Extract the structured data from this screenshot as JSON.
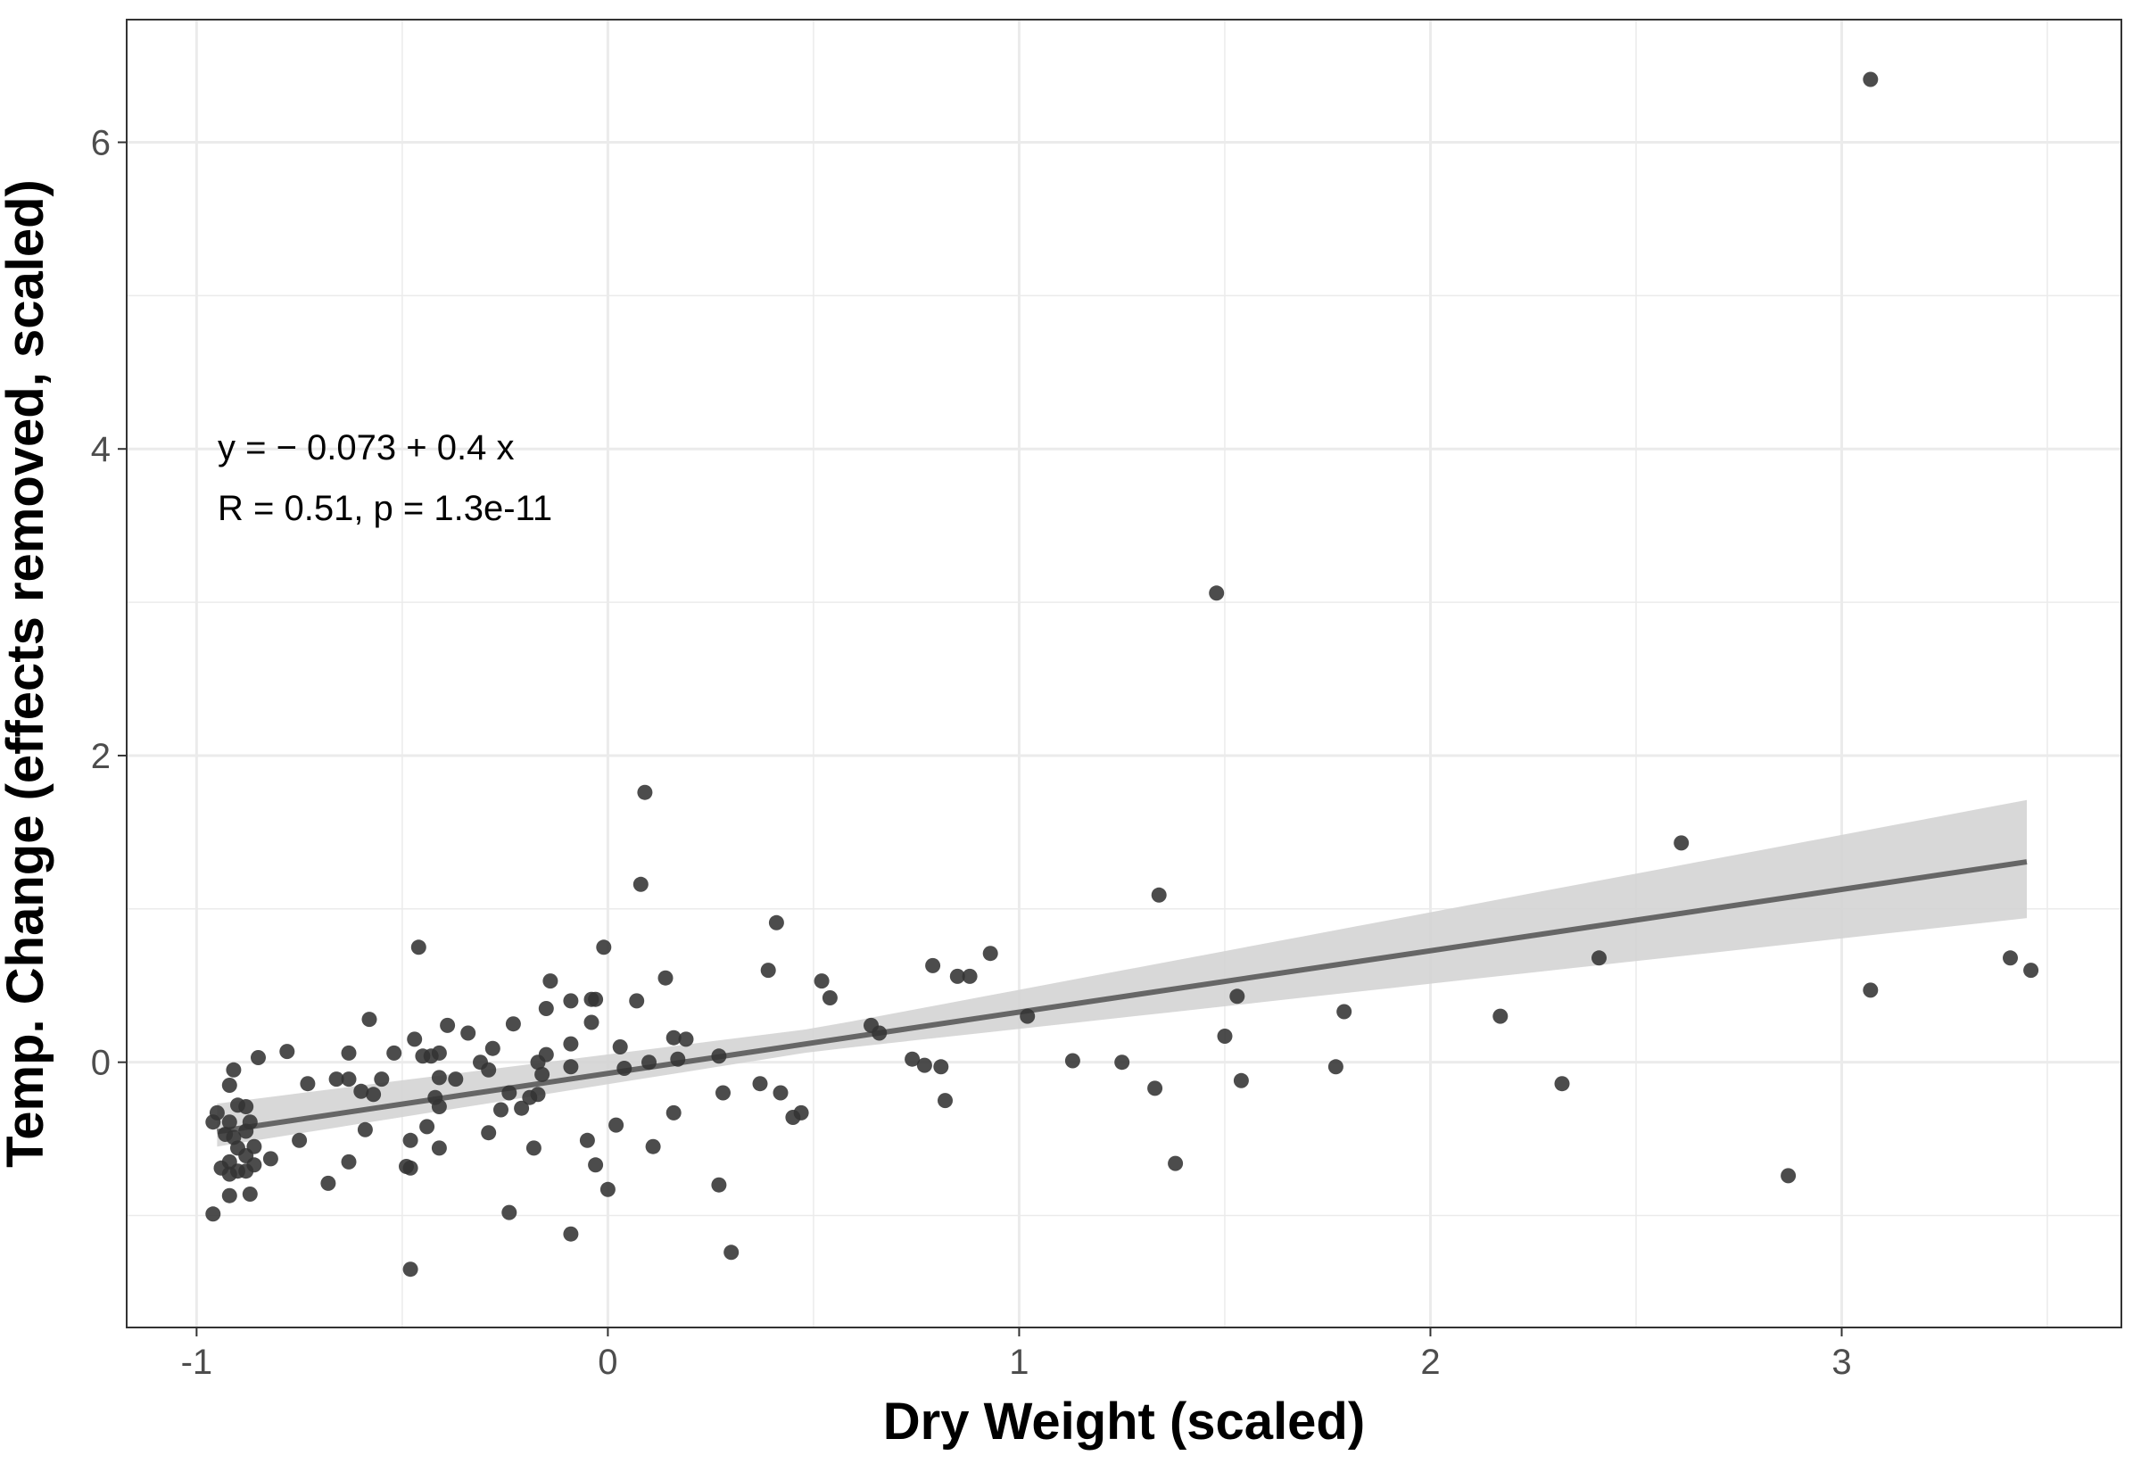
{
  "chart_data": {
    "type": "scatter",
    "title": "",
    "xlabel": "Dry Weight (scaled)",
    "ylabel": "Temp. Change (effects removed, scaled)",
    "xlim": [
      -1.17,
      3.68
    ],
    "ylim": [
      -1.73,
      6.8
    ],
    "x_ticks": [
      -1,
      0,
      1,
      2,
      3
    ],
    "x_tick_labels": [
      "-1",
      "0",
      "1",
      "2",
      "3"
    ],
    "y_ticks": [
      0,
      2,
      4,
      6
    ],
    "y_tick_labels": [
      "0",
      "2",
      "4",
      "6"
    ],
    "grid": true,
    "legend": "none",
    "colors": {
      "points": "#333333",
      "fit_line": "#666666",
      "confidence_band": "#d4d4d4",
      "grid": "#ebebeb",
      "panel_border": "#333333"
    },
    "regression": {
      "intercept": -0.073,
      "slope": 0.4,
      "x_range": [
        -0.95,
        3.45
      ],
      "ci_lower_at_x": [
        [
          -0.95,
          -0.55
        ],
        [
          0.5,
          0.07
        ],
        [
          3.45,
          0.94
        ]
      ],
      "ci_upper_at_x": [
        [
          -0.95,
          -0.27
        ],
        [
          0.5,
          0.22
        ],
        [
          3.45,
          1.71
        ]
      ]
    },
    "annotations": {
      "equation": "y = − 0.073 + 0.4 x",
      "stats": "R = 0.51, p = 1.3e-11"
    },
    "points": [
      [
        3.07,
        6.41
      ],
      [
        1.48,
        3.06
      ],
      [
        0.09,
        1.76
      ],
      [
        2.61,
        1.43
      ],
      [
        0.08,
        1.16
      ],
      [
        1.34,
        1.09
      ],
      [
        0.41,
        0.91
      ],
      [
        -0.46,
        0.75
      ],
      [
        -0.01,
        0.75
      ],
      [
        0.93,
        0.71
      ],
      [
        3.41,
        0.68
      ],
      [
        2.41,
        0.68
      ],
      [
        0.79,
        0.63
      ],
      [
        0.39,
        0.6
      ],
      [
        3.46,
        0.6
      ],
      [
        0.85,
        0.56
      ],
      [
        0.88,
        0.56
      ],
      [
        0.14,
        0.55
      ],
      [
        -0.14,
        0.53
      ],
      [
        0.52,
        0.53
      ],
      [
        3.07,
        0.47
      ],
      [
        1.53,
        0.43
      ],
      [
        0.54,
        0.42
      ],
      [
        -0.04,
        0.41
      ],
      [
        -0.03,
        0.41
      ],
      [
        0.07,
        0.4
      ],
      [
        -0.09,
        0.4
      ],
      [
        -0.15,
        0.35
      ],
      [
        1.79,
        0.33
      ],
      [
        1.02,
        0.3
      ],
      [
        2.17,
        0.3
      ],
      [
        -0.58,
        0.28
      ],
      [
        -0.04,
        0.26
      ],
      [
        -0.23,
        0.25
      ],
      [
        -0.39,
        0.24
      ],
      [
        0.64,
        0.24
      ],
      [
        0.66,
        0.19
      ],
      [
        -0.34,
        0.19
      ],
      [
        1.5,
        0.17
      ],
      [
        0.16,
        0.16
      ],
      [
        0.19,
        0.15
      ],
      [
        -0.47,
        0.15
      ],
      [
        -0.09,
        0.12
      ],
      [
        -0.28,
        0.09
      ],
      [
        0.03,
        0.1
      ],
      [
        -0.78,
        0.07
      ],
      [
        -0.52,
        0.06
      ],
      [
        -0.63,
        0.06
      ],
      [
        -0.41,
        0.06
      ],
      [
        -0.15,
        0.05
      ],
      [
        -0.45,
        0.04
      ],
      [
        -0.43,
        0.04
      ],
      [
        -0.85,
        0.03
      ],
      [
        0.27,
        0.04
      ],
      [
        0.17,
        0.02
      ],
      [
        0.74,
        0.02
      ],
      [
        1.13,
        0.01
      ],
      [
        -0.17,
        0.0
      ],
      [
        1.25,
        0.0
      ],
      [
        0.1,
        0.0
      ],
      [
        -0.31,
        0.0
      ],
      [
        0.77,
        -0.02
      ],
      [
        -0.09,
        -0.03
      ],
      [
        0.81,
        -0.03
      ],
      [
        0.04,
        -0.04
      ],
      [
        1.77,
        -0.03
      ],
      [
        -0.91,
        -0.05
      ],
      [
        -0.29,
        -0.05
      ],
      [
        -0.16,
        -0.08
      ],
      [
        -0.66,
        -0.11
      ],
      [
        -0.41,
        -0.1
      ],
      [
        -0.37,
        -0.11
      ],
      [
        -0.55,
        -0.11
      ],
      [
        -0.63,
        -0.11
      ],
      [
        -0.73,
        -0.14
      ],
      [
        1.54,
        -0.12
      ],
      [
        -0.92,
        -0.15
      ],
      [
        2.32,
        -0.14
      ],
      [
        0.37,
        -0.14
      ],
      [
        -0.6,
        -0.19
      ],
      [
        1.33,
        -0.17
      ],
      [
        -0.57,
        -0.21
      ],
      [
        -0.24,
        -0.2
      ],
      [
        0.28,
        -0.2
      ],
      [
        -0.17,
        -0.21
      ],
      [
        -0.42,
        -0.23
      ],
      [
        0.42,
        -0.2
      ],
      [
        0.82,
        -0.25
      ],
      [
        -0.41,
        -0.29
      ],
      [
        -0.19,
        -0.23
      ],
      [
        -0.9,
        -0.28
      ],
      [
        -0.88,
        -0.29
      ],
      [
        0.16,
        -0.33
      ],
      [
        -0.95,
        -0.33
      ],
      [
        -0.26,
        -0.31
      ],
      [
        0.47,
        -0.33
      ],
      [
        -0.21,
        -0.3
      ],
      [
        0.45,
        -0.36
      ],
      [
        -0.96,
        -0.39
      ],
      [
        -0.87,
        -0.39
      ],
      [
        -0.92,
        -0.39
      ],
      [
        0.02,
        -0.41
      ],
      [
        -0.44,
        -0.42
      ],
      [
        -0.59,
        -0.44
      ],
      [
        -0.29,
        -0.46
      ],
      [
        -0.93,
        -0.47
      ],
      [
        -0.88,
        -0.45
      ],
      [
        -0.91,
        -0.49
      ],
      [
        -0.75,
        -0.51
      ],
      [
        -0.48,
        -0.51
      ],
      [
        -0.05,
        -0.51
      ],
      [
        -0.41,
        -0.56
      ],
      [
        -0.18,
        -0.56
      ],
      [
        0.11,
        -0.55
      ],
      [
        -0.86,
        -0.55
      ],
      [
        -0.9,
        -0.56
      ],
      [
        -0.88,
        -0.61
      ],
      [
        -0.82,
        -0.63
      ],
      [
        -0.63,
        -0.65
      ],
      [
        -0.92,
        -0.65
      ],
      [
        -0.86,
        -0.67
      ],
      [
        -0.49,
        -0.68
      ],
      [
        -0.03,
        -0.67
      ],
      [
        -0.48,
        -0.69
      ],
      [
        -0.94,
        -0.69
      ],
      [
        -0.9,
        -0.71
      ],
      [
        -0.88,
        -0.71
      ],
      [
        1.38,
        -0.66
      ],
      [
        -0.92,
        -0.73
      ],
      [
        -0.68,
        -0.79
      ],
      [
        2.87,
        -0.74
      ],
      [
        0.27,
        -0.8
      ],
      [
        0.0,
        -0.83
      ],
      [
        -0.87,
        -0.86
      ],
      [
        -0.92,
        -0.87
      ],
      [
        -0.24,
        -0.98
      ],
      [
        -0.96,
        -0.99
      ],
      [
        -0.09,
        -1.12
      ],
      [
        0.3,
        -1.24
      ],
      [
        -0.48,
        -1.35
      ]
    ]
  }
}
